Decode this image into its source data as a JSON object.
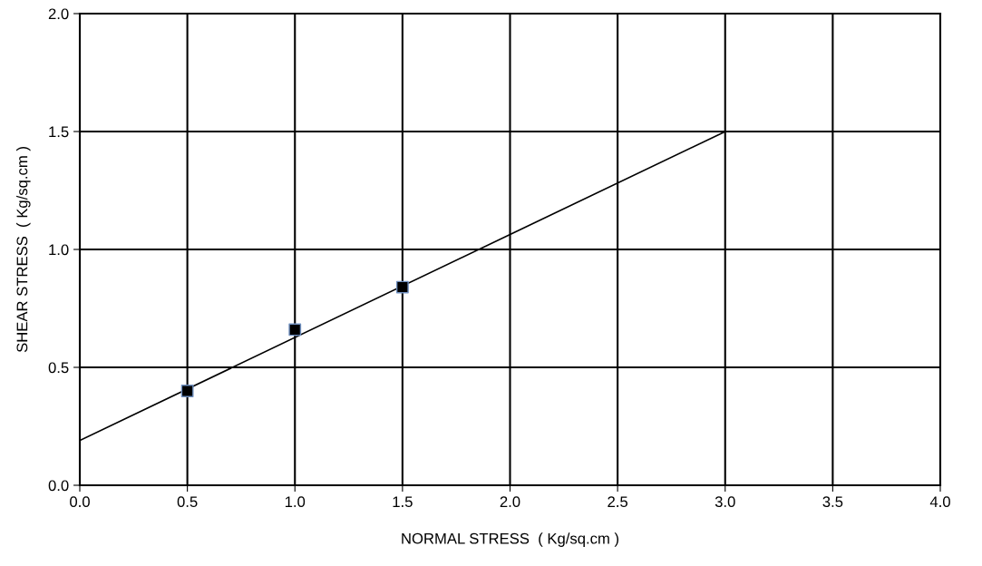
{
  "chart_data": {
    "type": "scatter",
    "xlabel": "NORMAL STRESS  ( Kg/sq.cm )",
    "ylabel": "SHEAR STRESS  ( Kg/sq.cm )",
    "series": [
      {
        "x": [
          0.5,
          1.0,
          1.5
        ],
        "values": [
          0.4,
          0.66,
          0.84
        ],
        "color": "#000000",
        "marker": "square"
      },
      {
        "type": "line",
        "x": [
          0,
          3.0
        ],
        "values": [
          0.19,
          1.5
        ],
        "color": "#000000",
        "line_style": "solid",
        "marker": "none"
      }
    ],
    "xlim": [
      0,
      4
    ],
    "xticks": [
      {
        "value": 0,
        "label": "0.0"
      },
      {
        "value": 0.5,
        "label": "0.5"
      },
      {
        "value": 1,
        "label": "1.0"
      },
      {
        "value": 1.5,
        "label": "1.5"
      },
      {
        "value": 2,
        "label": "2.0"
      },
      {
        "value": 2.5,
        "label": "2.5"
      },
      {
        "value": 3,
        "label": "3.0"
      },
      {
        "value": 3.5,
        "label": "3.5"
      },
      {
        "value": 4,
        "label": "4.0"
      }
    ],
    "ylim": [
      0,
      2
    ],
    "yticks": [
      {
        "value": 0,
        "label": "0.0"
      },
      {
        "value": 0.5,
        "label": "0.5"
      },
      {
        "value": 1,
        "label": "1.0"
      },
      {
        "value": 1.5,
        "label": "1.5"
      },
      {
        "value": 2,
        "label": "2.0"
      }
    ],
    "grid": true,
    "legend": false
  }
}
